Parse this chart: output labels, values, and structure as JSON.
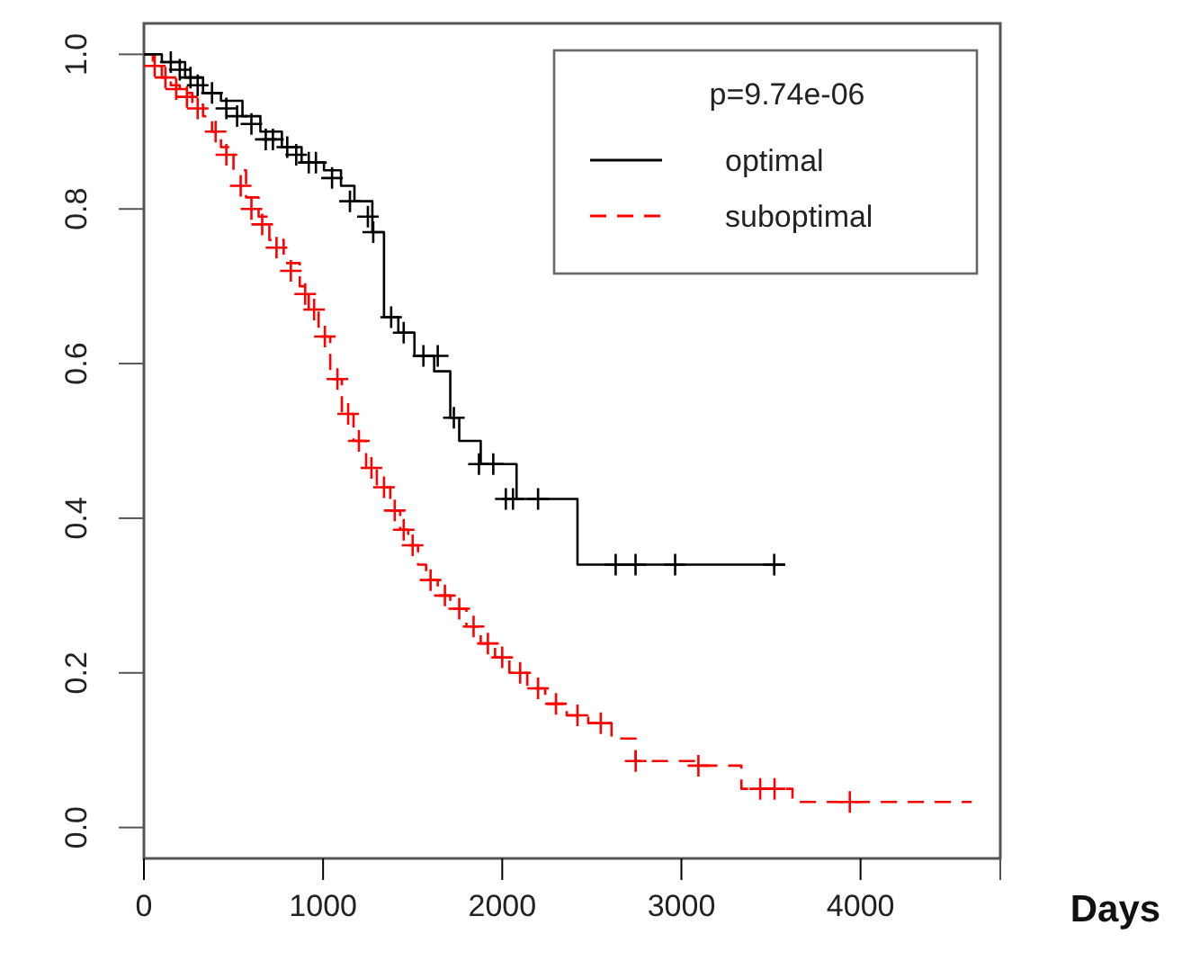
{
  "chart_data": {
    "type": "step",
    "xlabel": "Days",
    "legend_title": "p=9.74e-06",
    "legend": "top right",
    "grid": false,
    "xlim": [
      0,
      4780
    ],
    "ylim": [
      -0.04,
      1.04
    ],
    "xticks": [
      0,
      1000,
      2000,
      3000,
      4000
    ],
    "yticks": [
      {
        "value": 0,
        "label": "0.0"
      },
      {
        "value": 0.2,
        "label": "0.2"
      },
      {
        "value": 0.4,
        "label": "0.4"
      },
      {
        "value": 0.6,
        "label": "0.6"
      },
      {
        "value": 0.8,
        "label": "0.8"
      },
      {
        "value": 1,
        "label": "1.0"
      }
    ],
    "series": [
      {
        "name": "optimal",
        "color": "#000000",
        "line_style": "solid",
        "marker": "none",
        "x": [
          0,
          100,
          230,
          330,
          430,
          550,
          650,
          770,
          880,
          1005,
          1100,
          1175,
          1275,
          1340,
          1420,
          1510,
          1620,
          1710,
          1760,
          1880,
          2080,
          2420,
          3580
        ],
        "values": [
          1.0,
          0.99,
          0.97,
          0.95,
          0.94,
          0.92,
          0.9,
          0.88,
          0.86,
          0.85,
          0.83,
          0.81,
          0.77,
          0.66,
          0.64,
          0.61,
          0.59,
          0.53,
          0.5,
          0.47,
          0.425,
          0.34,
          0.34
        ]
      },
      {
        "name": "suboptimal",
        "color": "#ff0000",
        "line_style": "dashed",
        "marker": "none",
        "x": [
          0,
          50,
          100,
          150,
          200,
          270,
          330,
          380,
          430,
          500,
          570,
          640,
          700,
          780,
          870,
          920,
          975,
          1040,
          1105,
          1170,
          1240,
          1300,
          1375,
          1430,
          1475,
          1530,
          1575,
          1640,
          1710,
          1800,
          1880,
          1960,
          2040,
          2140,
          2240,
          2360,
          2480,
          2610,
          2745,
          3100,
          3335,
          3620,
          4620
        ],
        "values": [
          1.0,
          0.985,
          0.97,
          0.96,
          0.95,
          0.935,
          0.92,
          0.9,
          0.88,
          0.85,
          0.815,
          0.79,
          0.76,
          0.73,
          0.7,
          0.67,
          0.635,
          0.58,
          0.535,
          0.5,
          0.465,
          0.44,
          0.41,
          0.385,
          0.365,
          0.34,
          0.32,
          0.3,
          0.283,
          0.26,
          0.238,
          0.22,
          0.2,
          0.18,
          0.16,
          0.145,
          0.135,
          0.115,
          0.086,
          0.08,
          0.05,
          0.033,
          0.033
        ]
      },
      {
        "type": "scatter",
        "color": "#000000",
        "marker": "cross",
        "x": [
          150,
          200,
          260,
          300,
          380,
          460,
          520,
          600,
          680,
          720,
          800,
          850,
          920,
          960,
          1050,
          1150,
          1250,
          1280,
          1380,
          1450,
          1560,
          1640,
          1730,
          1870,
          1950,
          2020,
          2060,
          2200,
          2633,
          2744,
          2965,
          3518
        ],
        "values": [
          0.99,
          0.98,
          0.97,
          0.96,
          0.95,
          0.93,
          0.92,
          0.91,
          0.89,
          0.89,
          0.88,
          0.87,
          0.86,
          0.86,
          0.84,
          0.81,
          0.79,
          0.77,
          0.66,
          0.64,
          0.61,
          0.61,
          0.53,
          0.47,
          0.47,
          0.425,
          0.425,
          0.425,
          0.34,
          0.34,
          0.34,
          0.34
        ]
      },
      {
        "type": "scatter",
        "color": "#ff0000",
        "marker": "cross",
        "x": [
          60,
          120,
          180,
          240,
          300,
          400,
          460,
          540,
          600,
          660,
          740,
          820,
          900,
          950,
          1010,
          1080,
          1140,
          1200,
          1270,
          1340,
          1400,
          1450,
          1500,
          1600,
          1680,
          1760,
          1840,
          1920,
          2000,
          2100,
          2200,
          2300,
          2420,
          2550,
          2745,
          3095,
          3440,
          3520,
          3940
        ],
        "values": [
          0.985,
          0.97,
          0.955,
          0.945,
          0.93,
          0.9,
          0.87,
          0.83,
          0.8,
          0.78,
          0.75,
          0.72,
          0.69,
          0.67,
          0.635,
          0.58,
          0.535,
          0.5,
          0.465,
          0.44,
          0.41,
          0.385,
          0.365,
          0.32,
          0.3,
          0.283,
          0.26,
          0.238,
          0.22,
          0.2,
          0.18,
          0.16,
          0.145,
          0.135,
          0.086,
          0.08,
          0.05,
          0.05,
          0.033
        ]
      }
    ]
  }
}
